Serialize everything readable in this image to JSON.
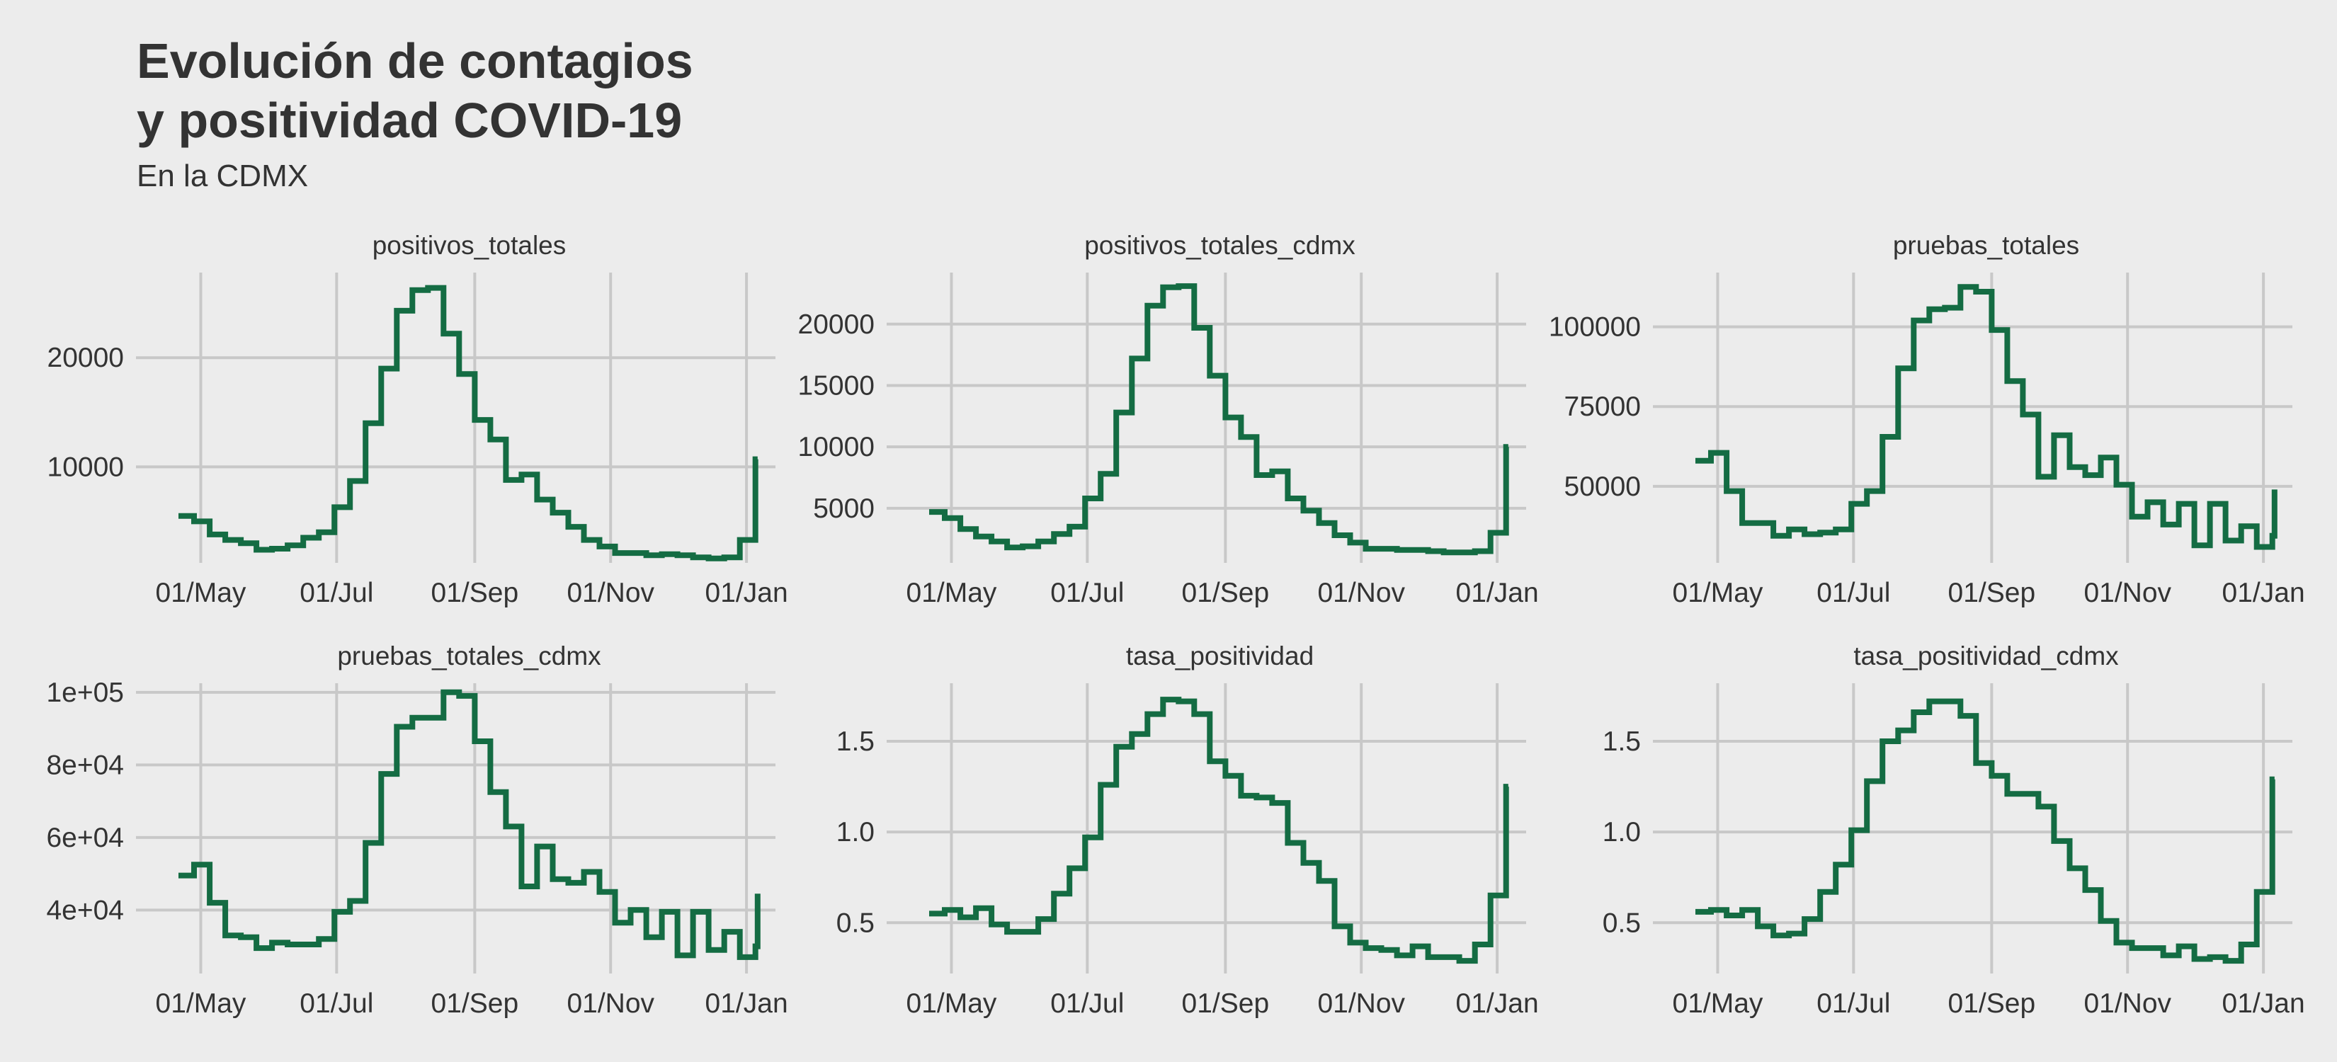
{
  "title": "Evolución de contagios\ny positividad COVID-19",
  "subtitle": "En la CDMX",
  "colors": {
    "background": "#ececec",
    "grid": "#c8c8c8",
    "line": "#146c43",
    "text": "#333333"
  },
  "chart_data": [
    {
      "type": "line",
      "step": true,
      "title": "positivos_totales",
      "x_ticks": [
        "01/May",
        "01/Jul",
        "01/Sep",
        "01/Nov",
        "01/Jan"
      ],
      "y_ticks": [
        "10000",
        "20000"
      ],
      "y_tick_values": [
        10000,
        20000
      ],
      "xlim": [
        -17,
        258
      ],
      "ylim": [
        1200,
        27800
      ],
      "series": [
        {
          "x": [
            -10,
            -3,
            4,
            11,
            18,
            25,
            32,
            39,
            46,
            53,
            60,
            67,
            74,
            81,
            88,
            95,
            102,
            109,
            116,
            123,
            130,
            137,
            144,
            151,
            158,
            165,
            172,
            179,
            186,
            193,
            200,
            207,
            214,
            221,
            228,
            235,
            242,
            249,
            250
          ],
          "y": [
            5500,
            5000,
            3800,
            3300,
            3000,
            2400,
            2500,
            2800,
            3500,
            4000,
            6300,
            8700,
            14000,
            19000,
            24300,
            26200,
            26400,
            22200,
            18500,
            14300,
            12500,
            8800,
            9300,
            7000,
            5800,
            4500,
            3300,
            2700,
            2100,
            2100,
            1900,
            2000,
            1900,
            1700,
            1600,
            1700,
            3300,
            10700,
            10700
          ]
        }
      ]
    },
    {
      "type": "line",
      "step": true,
      "title": "positivos_totales_cdmx",
      "x_ticks": [
        "01/May",
        "01/Jul",
        "01/Sep",
        "01/Nov",
        "01/Jan"
      ],
      "y_ticks": [
        "5000",
        "10000",
        "15000",
        "20000"
      ],
      "y_tick_values": [
        5000,
        10000,
        15000,
        20000
      ],
      "xlim": [
        -17,
        258
      ],
      "ylim": [
        550,
        24200
      ],
      "series": [
        {
          "x": [
            -10,
            -3,
            4,
            11,
            18,
            25,
            32,
            39,
            46,
            53,
            60,
            67,
            74,
            81,
            88,
            95,
            102,
            109,
            116,
            123,
            130,
            137,
            144,
            151,
            158,
            165,
            172,
            179,
            186,
            193,
            200,
            207,
            214,
            221,
            228,
            235,
            242,
            249,
            250
          ],
          "y": [
            4700,
            4200,
            3300,
            2700,
            2300,
            1800,
            1900,
            2300,
            2900,
            3500,
            5800,
            7800,
            12800,
            17200,
            21500,
            23000,
            23100,
            19700,
            15800,
            12400,
            10800,
            7700,
            8000,
            5800,
            4800,
            3800,
            2800,
            2200,
            1700,
            1700,
            1600,
            1600,
            1500,
            1400,
            1400,
            1500,
            3000,
            10000,
            10000
          ]
        }
      ]
    },
    {
      "type": "line",
      "step": true,
      "title": "pruebas_totales",
      "x_ticks": [
        "01/May",
        "01/Jul",
        "01/Sep",
        "01/Nov",
        "01/Jan"
      ],
      "y_ticks": [
        "50000",
        "75000",
        "100000"
      ],
      "y_tick_values": [
        50000,
        75000,
        100000
      ],
      "xlim": [
        -17,
        258
      ],
      "ylim": [
        26000,
        117000
      ],
      "series": [
        {
          "x": [
            -10,
            -3,
            4,
            11,
            18,
            25,
            32,
            39,
            46,
            53,
            60,
            67,
            74,
            81,
            88,
            95,
            102,
            109,
            116,
            123,
            130,
            137,
            144,
            151,
            158,
            165,
            172,
            179,
            186,
            193,
            200,
            207,
            214,
            221,
            228,
            235,
            242,
            249,
            250
          ],
          "y": [
            58000,
            60500,
            48500,
            38500,
            38500,
            34500,
            36500,
            35000,
            35500,
            36500,
            44500,
            48500,
            65500,
            87000,
            102000,
            105500,
            106000,
            112500,
            111000,
            99000,
            83000,
            72500,
            53000,
            66000,
            56000,
            53500,
            59000,
            50500,
            40500,
            45000,
            38000,
            44500,
            31500,
            44500,
            33000,
            37500,
            31000,
            34500,
            49000
          ]
        }
      ]
    },
    {
      "type": "line",
      "step": true,
      "title": "pruebas_totales_cdmx",
      "x_ticks": [
        "01/May",
        "01/Jul",
        "01/Sep",
        "01/Nov",
        "01/Jan"
      ],
      "y_ticks": [
        "4e+04",
        "6e+04",
        "8e+04",
        "1e+05"
      ],
      "y_tick_values": [
        40000,
        60000,
        80000,
        100000
      ],
      "xlim": [
        -17,
        258
      ],
      "ylim": [
        22500,
        102500
      ],
      "series": [
        {
          "x": [
            -10,
            -3,
            4,
            11,
            18,
            25,
            32,
            39,
            46,
            53,
            60,
            67,
            74,
            81,
            88,
            95,
            102,
            109,
            116,
            123,
            130,
            137,
            144,
            151,
            158,
            165,
            172,
            179,
            186,
            193,
            200,
            207,
            214,
            221,
            228,
            235,
            242,
            249,
            250
          ],
          "y": [
            49500,
            52500,
            42000,
            33000,
            32500,
            29500,
            31000,
            30500,
            30500,
            32000,
            39500,
            42500,
            58500,
            77500,
            90500,
            93000,
            93000,
            100000,
            99000,
            86500,
            72500,
            63000,
            46500,
            57500,
            48500,
            47500,
            50500,
            45000,
            36500,
            40000,
            32500,
            39500,
            27500,
            39500,
            29000,
            34000,
            27000,
            30000,
            44500
          ]
        }
      ]
    },
    {
      "type": "line",
      "step": true,
      "title": "tasa_positividad",
      "x_ticks": [
        "01/May",
        "01/Jul",
        "01/Sep",
        "01/Nov",
        "01/Jan"
      ],
      "y_ticks": [
        "0.5",
        "1.0",
        "1.5"
      ],
      "y_tick_values": [
        0.5,
        1.0,
        1.5
      ],
      "xlim": [
        -17,
        258
      ],
      "ylim": [
        0.22,
        1.82
      ],
      "series": [
        {
          "x": [
            -10,
            -3,
            4,
            11,
            18,
            25,
            32,
            39,
            46,
            53,
            60,
            67,
            74,
            81,
            88,
            95,
            102,
            109,
            116,
            123,
            130,
            137,
            144,
            151,
            158,
            165,
            172,
            179,
            186,
            193,
            200,
            207,
            214,
            221,
            228,
            235,
            242,
            249,
            250
          ],
          "y": [
            0.55,
            0.57,
            0.53,
            0.58,
            0.49,
            0.45,
            0.45,
            0.52,
            0.66,
            0.8,
            0.97,
            1.26,
            1.47,
            1.54,
            1.65,
            1.73,
            1.72,
            1.65,
            1.39,
            1.31,
            1.2,
            1.19,
            1.16,
            0.94,
            0.83,
            0.73,
            0.48,
            0.39,
            0.36,
            0.35,
            0.32,
            0.37,
            0.31,
            0.31,
            0.29,
            0.38,
            0.65,
            1.25,
            1.25
          ]
        }
      ]
    },
    {
      "type": "line",
      "step": true,
      "title": "tasa_positividad_cdmx",
      "x_ticks": [
        "01/May",
        "01/Jul",
        "01/Sep",
        "01/Nov",
        "01/Jan"
      ],
      "y_ticks": [
        "0.5",
        "1.0",
        "1.5"
      ],
      "y_tick_values": [
        0.5,
        1.0,
        1.5
      ],
      "xlim": [
        -17,
        258
      ],
      "ylim": [
        0.22,
        1.82
      ],
      "series": [
        {
          "x": [
            -10,
            -3,
            4,
            11,
            18,
            25,
            32,
            39,
            46,
            53,
            60,
            67,
            74,
            81,
            88,
            95,
            102,
            109,
            116,
            123,
            130,
            137,
            144,
            151,
            158,
            165,
            172,
            179,
            186,
            193,
            200,
            207,
            214,
            221,
            228,
            235,
            242,
            249,
            250
          ],
          "y": [
            0.56,
            0.57,
            0.54,
            0.57,
            0.48,
            0.43,
            0.44,
            0.52,
            0.67,
            0.82,
            1.01,
            1.28,
            1.5,
            1.56,
            1.66,
            1.72,
            1.72,
            1.64,
            1.38,
            1.31,
            1.21,
            1.21,
            1.14,
            0.95,
            0.8,
            0.68,
            0.51,
            0.39,
            0.36,
            0.36,
            0.32,
            0.37,
            0.3,
            0.31,
            0.29,
            0.38,
            0.67,
            1.29,
            1.29
          ]
        }
      ]
    }
  ]
}
